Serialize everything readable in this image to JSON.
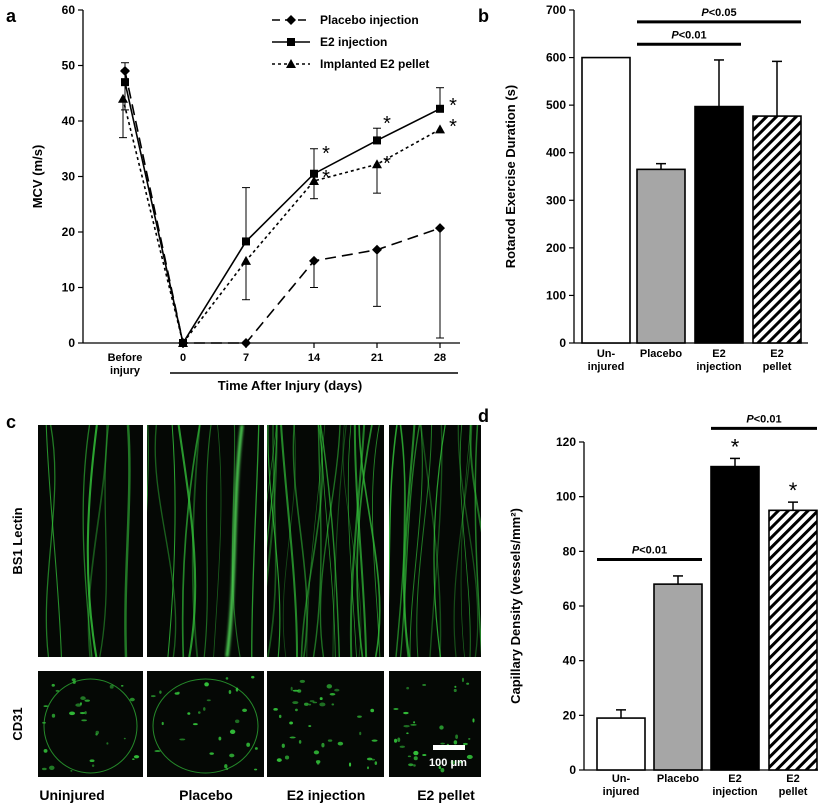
{
  "panels": {
    "a": "a",
    "b": "b",
    "c": "c",
    "d": "d"
  },
  "chart_data": [
    {
      "id": "a",
      "type": "line",
      "ylabel": "MCV (m/s)",
      "xlabel": "Time After Injury (days)",
      "ylim": [
        0,
        60
      ],
      "yticks": [
        0,
        10,
        20,
        30,
        40,
        50,
        60
      ],
      "x_ticks": [
        "Before\ninjury",
        "0",
        "7",
        "14",
        "21",
        "28"
      ],
      "legend_position": "top-right",
      "series": [
        {
          "name": "Placebo injection",
          "marker": "diamond",
          "dash": "long",
          "x": [
            0,
            1,
            2,
            3,
            4,
            5
          ],
          "y": [
            49,
            0,
            0,
            14.8,
            16.8,
            20.7
          ],
          "err_up": [
            1.5,
            0,
            0,
            0,
            0,
            0
          ],
          "err_down": [
            0,
            0,
            0,
            4.8,
            10.2,
            19.8
          ]
        },
        {
          "name": "E2 injection",
          "marker": "square",
          "dash": "solid",
          "x": [
            0,
            1,
            2,
            3,
            4,
            5
          ],
          "y": [
            47,
            0,
            18.3,
            30.5,
            36.5,
            42.2
          ],
          "err_up": [
            2.2,
            0,
            9.7,
            4.5,
            2.2,
            3.8
          ],
          "err_down": [
            5,
            0,
            0,
            0,
            0,
            0
          ]
        },
        {
          "name": "Implanted E2 pellet",
          "marker": "triangle",
          "dash": "dotted",
          "x": [
            0,
            1,
            2,
            3,
            4,
            5
          ],
          "y": [
            44,
            0,
            14.8,
            29.2,
            32.2,
            38.5
          ],
          "err_up": [
            0,
            0,
            0,
            0,
            0,
            0
          ],
          "err_down": [
            7,
            0,
            7,
            3.2,
            5.2,
            0
          ]
        }
      ],
      "annotations": [
        "*",
        "*",
        "*",
        "*",
        "*",
        "*"
      ]
    },
    {
      "id": "b",
      "type": "bar",
      "ylabel": "Rotarod Exercise Duration (s)",
      "ylim": [
        0,
        700
      ],
      "yticks": [
        0,
        100,
        200,
        300,
        400,
        500,
        600,
        700
      ],
      "categories": [
        "Un-\ninjured",
        "Placebo",
        "E2\ninjection",
        "E2\npellet"
      ],
      "values": [
        600,
        365,
        497,
        477
      ],
      "errors": [
        0,
        12,
        98,
        115
      ],
      "fills": [
        "white",
        "gray",
        "black",
        "hatch"
      ],
      "significance": [
        {
          "label": "P<0.01",
          "from": 1,
          "to": 2,
          "y": 628
        },
        {
          "label": "P<0.05",
          "from": 1,
          "to": 3,
          "y": 675
        }
      ]
    },
    {
      "id": "d",
      "type": "bar",
      "ylabel": "Capillary Density (vessels/mm²)",
      "ylim": [
        0,
        120
      ],
      "yticks": [
        0,
        20,
        40,
        60,
        80,
        100,
        120
      ],
      "categories": [
        "Un-\ninjured",
        "Placebo",
        "E2\ninjection",
        "E2\npellet"
      ],
      "values": [
        19,
        68,
        111,
        95
      ],
      "errors": [
        3,
        3,
        3,
        3
      ],
      "fills": [
        "white",
        "gray",
        "black",
        "hatch"
      ],
      "stars": [
        "",
        "",
        "*",
        "*"
      ],
      "significance": [
        {
          "label": "P<0.01",
          "from": 0,
          "to": 1,
          "y": 77
        },
        {
          "label": "P<0.01",
          "from": 2,
          "to": 3,
          "y": 125
        }
      ]
    }
  ],
  "micrographs": {
    "rows": [
      "BS1 Lectin",
      "CD31"
    ],
    "columns": [
      "Uninjured",
      "Placebo",
      "E2 injection",
      "E2 pellet"
    ],
    "scale_bar": "100 μm",
    "colors": {
      "fluorescence": "#33c23a",
      "background": "#050805"
    }
  }
}
